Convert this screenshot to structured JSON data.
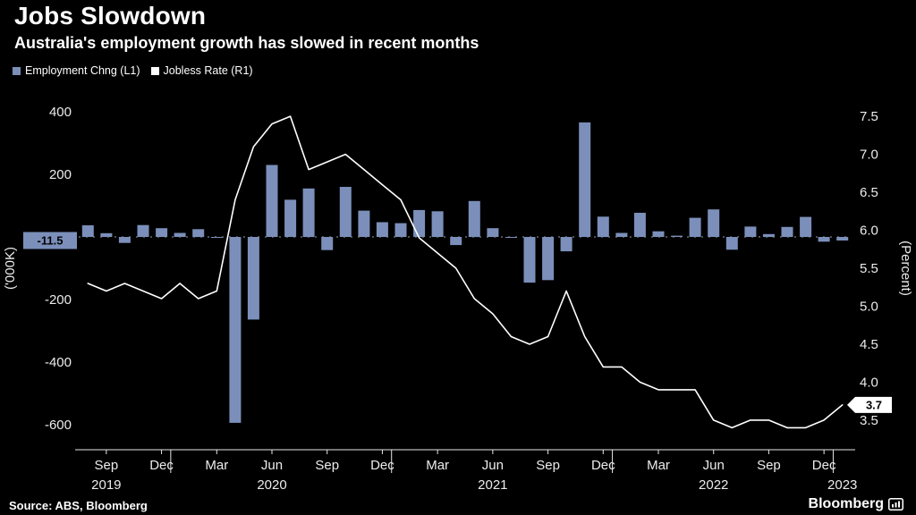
{
  "page": {
    "title": "Jobs Slowdown",
    "subtitle": "Australia's employment growth has slowed in recent months",
    "source": "Source: ABS, Bloomberg",
    "brand": "Bloomberg"
  },
  "legend": [
    {
      "label": "Employment Chng (L1)",
      "color": "#7b8fba"
    },
    {
      "label": "Jobless Rate (R1)",
      "color": "#ffffff"
    }
  ],
  "chart_data": {
    "type": "combo",
    "title": "Jobs Slowdown",
    "subtitle": "Australia's employment growth has slowed in recent months",
    "grid": false,
    "legend_position": "top-left",
    "months": [
      "Aug 2019",
      "Sep 2019",
      "Oct 2019",
      "Nov 2019",
      "Dec 2019",
      "Jan 2020",
      "Feb 2020",
      "Mar 2020",
      "Apr 2020",
      "May 2020",
      "Jun 2020",
      "Jul 2020",
      "Aug 2020",
      "Sep 2020",
      "Oct 2020",
      "Nov 2020",
      "Dec 2020",
      "Jan 2021",
      "Feb 2021",
      "Mar 2021",
      "Apr 2021",
      "May 2021",
      "Jun 2021",
      "Jul 2021",
      "Aug 2021",
      "Sep 2021",
      "Oct 2021",
      "Nov 2021",
      "Dec 2021",
      "Jan 2022",
      "Feb 2022",
      "Mar 2022",
      "Apr 2022",
      "May 2022",
      "Jun 2022",
      "Jul 2022",
      "Aug 2022",
      "Sep 2022",
      "Oct 2022",
      "Nov 2022",
      "Dec 2022",
      "Jan 2023"
    ],
    "series": [
      {
        "name": "Employment Chng (L1)",
        "type": "bar",
        "axis": "left",
        "color": "#7b8fba",
        "values": [
          37,
          12,
          -19,
          38,
          28,
          13,
          25,
          -1,
          -594,
          -264,
          230,
          119,
          155,
          -42,
          160,
          84,
          47,
          44,
          86,
          82,
          -26,
          115,
          28,
          -2,
          -146,
          -138,
          -46,
          366,
          65,
          13,
          77,
          18,
          4,
          61,
          88,
          -41,
          33,
          9,
          32,
          64,
          -15,
          -11.5
        ]
      },
      {
        "name": "Jobless Rate (R1)",
        "type": "line",
        "axis": "right",
        "color": "#ffffff",
        "values": [
          5.3,
          5.2,
          5.3,
          5.2,
          5.1,
          5.3,
          5.1,
          5.2,
          6.4,
          7.1,
          7.4,
          7.5,
          6.8,
          6.9,
          7.0,
          6.8,
          6.6,
          6.4,
          5.9,
          5.7,
          5.5,
          5.1,
          4.9,
          4.6,
          4.5,
          4.6,
          5.2,
          4.6,
          4.2,
          4.2,
          4.0,
          3.9,
          3.9,
          3.9,
          3.5,
          3.4,
          3.5,
          3.5,
          3.4,
          3.4,
          3.5,
          3.7
        ]
      }
    ],
    "left_axis": {
      "title": "('000K)",
      "min": -600,
      "max": 400,
      "ticks": [
        400,
        200,
        -200,
        -400,
        -600
      ],
      "last_value_label": "-11.5"
    },
    "right_axis": {
      "title": "(Percent)",
      "min": 3.44,
      "max": 7.56,
      "ticks": [
        7.5,
        7,
        6.5,
        6,
        5.5,
        5,
        4.5,
        4,
        3.5
      ],
      "last_value_label": "3.7"
    },
    "x_ticks": [
      {
        "label": "Sep",
        "index": 1
      },
      {
        "label": "Dec",
        "index": 4
      },
      {
        "label": "Mar",
        "index": 7
      },
      {
        "label": "Jun",
        "index": 10
      },
      {
        "label": "Sep",
        "index": 13
      },
      {
        "label": "Dec",
        "index": 16
      },
      {
        "label": "Mar",
        "index": 19
      },
      {
        "label": "Jun",
        "index": 22
      },
      {
        "label": "Sep",
        "index": 25
      },
      {
        "label": "Dec",
        "index": 28
      },
      {
        "label": "Mar",
        "index": 31
      },
      {
        "label": "Jun",
        "index": 34
      },
      {
        "label": "Sep",
        "index": 37
      },
      {
        "label": "Dec",
        "index": 40
      }
    ],
    "year_labels": [
      {
        "label": "2019",
        "index": 1
      },
      {
        "label": "2020",
        "index": 10
      },
      {
        "label": "2021",
        "index": 22
      },
      {
        "label": "2022",
        "index": 34
      },
      {
        "label": "2023",
        "index": 41
      }
    ],
    "year_dividers": [
      5,
      17,
      29,
      41
    ]
  }
}
